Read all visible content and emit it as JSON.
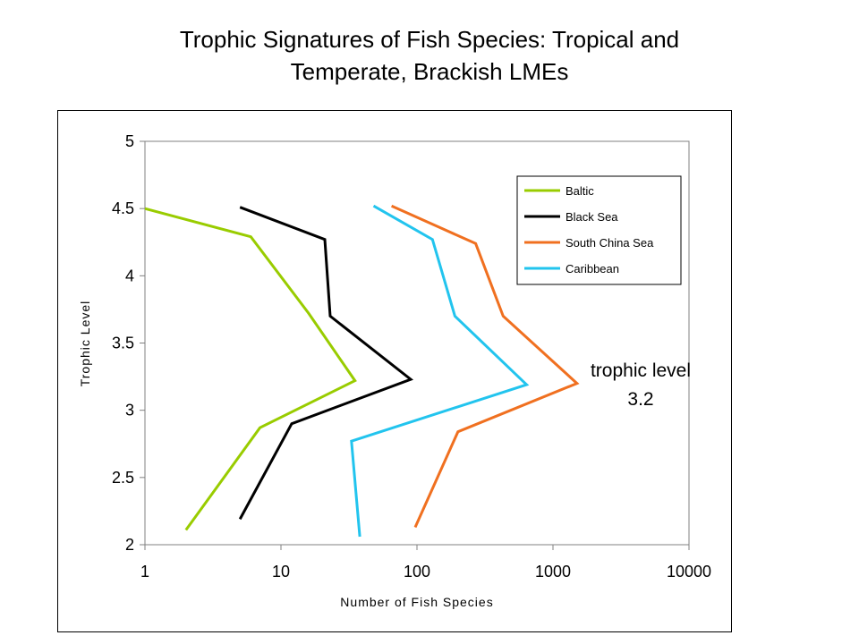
{
  "chart_data": {
    "type": "line",
    "title_line1": "Trophic Signatures of Fish Species: Tropical and",
    "title_line2": "Temperate, Brackish LMEs",
    "xlabel": "Number of Fish Species",
    "ylabel": "Trophic Level",
    "x_scale": "log",
    "xlim": [
      1,
      10000
    ],
    "ylim": [
      2,
      5
    ],
    "x_ticks": [
      "1",
      "10",
      "100",
      "1000",
      "10000"
    ],
    "y_ticks": [
      "2",
      "2.5",
      "3",
      "3.5",
      "4",
      "4.5",
      "5"
    ],
    "grid": false,
    "legend_position": "top-right",
    "annotation_line1": "trophic level",
    "annotation_line2": "3.2",
    "series": [
      {
        "name": "Baltic",
        "color": "#99CC00",
        "points": [
          [
            1,
            4.5
          ],
          [
            6,
            4.29
          ],
          [
            16,
            3.72
          ],
          [
            35,
            3.22
          ],
          [
            7,
            2.87
          ],
          [
            2,
            2.11
          ]
        ]
      },
      {
        "name": "Black Sea",
        "color": "#000000",
        "points": [
          [
            5,
            4.51
          ],
          [
            21,
            4.27
          ],
          [
            23,
            3.7
          ],
          [
            90,
            3.23
          ],
          [
            12,
            2.9
          ],
          [
            5,
            2.19
          ]
        ]
      },
      {
        "name": "South China Sea",
        "color": "#F07020",
        "points": [
          [
            65,
            4.52
          ],
          [
            270,
            4.24
          ],
          [
            430,
            3.7
          ],
          [
            1500,
            3.2
          ],
          [
            200,
            2.84
          ],
          [
            97,
            2.13
          ]
        ]
      },
      {
        "name": "Caribbean",
        "color": "#22C4EE",
        "points": [
          [
            48,
            4.52
          ],
          [
            130,
            4.27
          ],
          [
            190,
            3.7
          ],
          [
            640,
            3.19
          ],
          [
            33,
            2.77
          ],
          [
            38,
            2.06
          ]
        ]
      }
    ]
  }
}
